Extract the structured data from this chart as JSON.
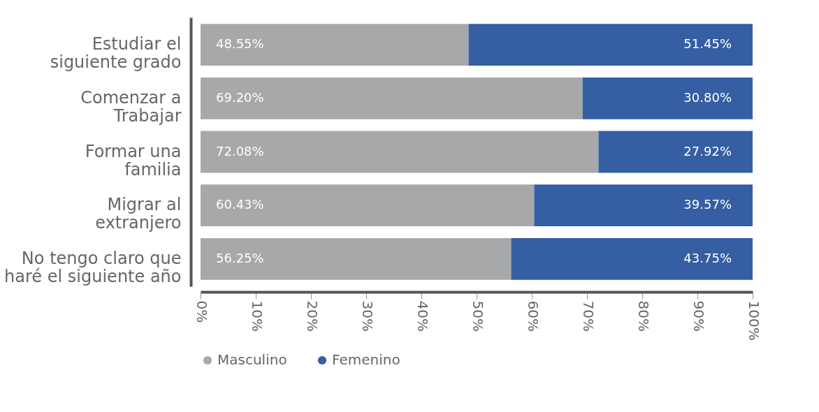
{
  "chart_data": {
    "type": "bar",
    "orientation": "horizontal",
    "stacked": true,
    "categories": [
      "Estudiar el siguiente grado",
      "Comenzar a Trabajar",
      "Formar una familia",
      "Migrar al extranjero",
      "No tengo claro que haré el siguiente año"
    ],
    "series": [
      {
        "name": "Masculino",
        "color": "#a7a8aa",
        "values": [
          48.55,
          69.2,
          72.08,
          60.43,
          56.25
        ],
        "value_labels": [
          "48.55%",
          "69.20%",
          "72.08%",
          "60.43%",
          "56.25%"
        ]
      },
      {
        "name": "Femenino",
        "color": "#365ea2",
        "values": [
          51.45,
          30.8,
          27.92,
          39.57,
          43.75
        ],
        "value_labels": [
          "51.45%",
          "30.80%",
          "27.92%",
          "39.57%",
          "43.75%"
        ]
      }
    ],
    "xlim": [
      0,
      100
    ],
    "xticks": [
      {
        "value": 0,
        "label": "0%"
      },
      {
        "value": 10,
        "label": "10%"
      },
      {
        "value": 20,
        "label": "20%"
      },
      {
        "value": 30,
        "label": "30%"
      },
      {
        "value": 40,
        "label": "40%"
      },
      {
        "value": 50,
        "label": "50%"
      },
      {
        "value": 60,
        "label": "60%"
      },
      {
        "value": 70,
        "label": "70%"
      },
      {
        "value": 80,
        "label": "80%"
      },
      {
        "value": 90,
        "label": "90%"
      },
      {
        "value": 100,
        "label": "100%"
      }
    ],
    "grid": false,
    "legend": "bottom"
  }
}
